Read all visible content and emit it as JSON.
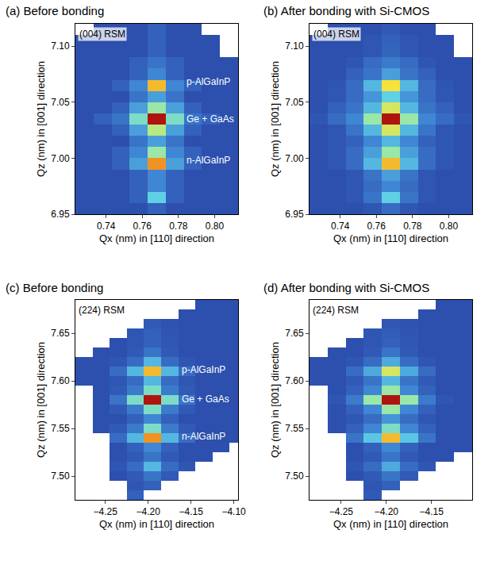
{
  "chart_data": [
    {
      "type": "heatmap",
      "title": "(a) Before bonding",
      "x_label": "Qx (nm) in [110] direction",
      "y_label": "Qz (nm) in [001] direction",
      "label": {
        "text": "(004) RSM",
        "x": 0.7245,
        "y": 7.117
      },
      "annotations": [
        {
          "text": "p-AlGaInP",
          "x": 0.7835,
          "y": 7.068
        },
        {
          "text": "Ge + GaAs",
          "x": 0.7835,
          "y": 7.035
        },
        {
          "text": "n-AlGaInP",
          "x": 0.7835,
          "y": 6.998
        }
      ],
      "xlim": [
        0.723,
        0.813
      ],
      "ylim": [
        6.95,
        7.12
      ],
      "xticks": [
        0.74,
        0.76,
        0.78,
        {
          "value": 0.8,
          "label": "0.80"
        }
      ],
      "yticks": [
        6.95,
        {
          "value": 7,
          "label": "7.00"
        },
        7.05,
        {
          "value": 7.1,
          "label": "7.10"
        }
      ],
      "zlim": [
        0,
        10
      ],
      "x": [
        0.728,
        0.738,
        0.748,
        0.758,
        0.768,
        0.778,
        0.788,
        0.798,
        0.808
      ],
      "y": [
        6.955,
        6.965,
        6.975,
        6.985,
        6.995,
        7.005,
        7.015,
        7.025,
        7.035,
        7.045,
        7.055,
        7.065,
        7.075,
        7.085,
        7.095,
        7.105,
        7.115
      ],
      "z": [
        [
          2,
          2,
          2,
          2,
          2.5,
          2,
          2,
          2,
          2
        ],
        [
          2,
          2,
          2,
          2.5,
          5,
          2.5,
          2,
          2,
          2
        ],
        [
          2,
          2,
          2,
          2.5,
          3.5,
          2.5,
          2,
          2,
          2
        ],
        [
          2,
          2,
          2,
          2.5,
          3.5,
          2.5,
          2,
          2,
          2
        ],
        [
          2,
          2,
          2.5,
          4,
          8.5,
          4,
          2.5,
          2,
          2
        ],
        [
          2,
          2,
          2.5,
          3.5,
          6,
          3.5,
          2.5,
          2,
          2
        ],
        [
          2,
          2,
          2,
          3,
          4,
          3,
          2,
          2,
          2
        ],
        [
          2,
          2,
          2.5,
          4,
          6.5,
          4,
          2.5,
          2,
          2
        ],
        [
          2,
          2.5,
          3,
          5.5,
          10,
          5.5,
          3,
          2.5,
          2
        ],
        [
          2,
          2,
          2.5,
          4,
          6,
          4,
          2.5,
          2,
          2
        ],
        [
          2,
          2,
          2,
          3,
          4,
          3,
          2,
          2,
          2
        ],
        [
          2,
          2,
          2.5,
          3.5,
          8,
          3.5,
          2.5,
          2,
          2
        ],
        [
          2,
          2,
          2,
          2.5,
          3.5,
          2.5,
          2,
          2,
          2
        ],
        [
          2,
          2,
          2,
          2.5,
          3,
          2.5,
          2,
          2,
          2
        ],
        [
          2,
          2,
          2,
          2,
          2.5,
          2,
          2,
          2,
          null
        ],
        [
          2,
          2,
          2,
          2,
          2.5,
          2,
          2,
          2,
          null
        ],
        [
          null,
          2,
          2,
          2,
          2.5,
          2,
          2,
          null,
          null
        ]
      ]
    },
    {
      "type": "heatmap",
      "title": "(b) After bonding with Si-CMOS",
      "x_label": "Qx (nm) in [110] direction",
      "y_label": "Qz (nm) in [001] direction",
      "label": {
        "text": "(004) RSM",
        "x": 0.7245,
        "y": 7.117
      },
      "annotations": [],
      "xlim": [
        0.723,
        0.813
      ],
      "ylim": [
        6.95,
        7.12
      ],
      "xticks": [
        0.74,
        0.76,
        0.78,
        {
          "value": 0.8,
          "label": "0.80"
        }
      ],
      "yticks": [
        6.95,
        {
          "value": 7,
          "label": "7.00"
        },
        7.05,
        {
          "value": 7.1,
          "label": "7.10"
        }
      ],
      "zlim": [
        0,
        10
      ],
      "x": [
        0.728,
        0.738,
        0.748,
        0.758,
        0.768,
        0.778,
        0.788,
        0.798,
        0.808
      ],
      "y": [
        6.955,
        6.965,
        6.975,
        6.985,
        6.995,
        7.005,
        7.015,
        7.025,
        7.035,
        7.045,
        7.055,
        7.065,
        7.075,
        7.085,
        7.095,
        7.105,
        7.115
      ],
      "z": [
        [
          2,
          2,
          2,
          2.2,
          2.8,
          2.2,
          2,
          2,
          2
        ],
        [
          2,
          2,
          2.2,
          3,
          5,
          3,
          2.2,
          2,
          2
        ],
        [
          2,
          2,
          2.2,
          2.8,
          3.5,
          2.8,
          2.2,
          2,
          2
        ],
        [
          2,
          2,
          2.2,
          3,
          4,
          3,
          2.2,
          2,
          2
        ],
        [
          2,
          2.2,
          2.8,
          4.5,
          8,
          4.5,
          2.8,
          2.2,
          2
        ],
        [
          2,
          2.2,
          2.8,
          4,
          6,
          4,
          2.8,
          2.2,
          2
        ],
        [
          2,
          2.2,
          2.5,
          3.5,
          4.5,
          3.5,
          2.5,
          2.2,
          2
        ],
        [
          2,
          2.2,
          3,
          4.5,
          7,
          4.5,
          3,
          2.2,
          2
        ],
        [
          2.2,
          2.8,
          3.5,
          6,
          10,
          6,
          3.5,
          2.8,
          2.2
        ],
        [
          2,
          2.5,
          3,
          4.5,
          7,
          4.5,
          3,
          2.5,
          2
        ],
        [
          2,
          2.2,
          2.8,
          3.8,
          5,
          3.8,
          2.8,
          2.2,
          2
        ],
        [
          2,
          2.2,
          2.8,
          4.5,
          7.5,
          4.5,
          2.8,
          2.2,
          2
        ],
        [
          2,
          2,
          2.5,
          3,
          4,
          3,
          2.5,
          2,
          2
        ],
        [
          2,
          2,
          2.2,
          2.8,
          3.2,
          2.8,
          2.2,
          2,
          2
        ],
        [
          2,
          2,
          2,
          2.2,
          2.6,
          2.2,
          2,
          2,
          null
        ],
        [
          2,
          2,
          2,
          2.2,
          2.5,
          2.2,
          2,
          2,
          null
        ],
        [
          null,
          2,
          2,
          2,
          2.3,
          2,
          2,
          null,
          null
        ]
      ]
    },
    {
      "type": "heatmap",
      "title": "(c) Before bonding",
      "x_label": "Qx (nm) in [110] direction",
      "y_label": "Qz (nm) in [001] direction",
      "label": {
        "text": "(224) RSM",
        "x": -4.283,
        "y": 7.682
      },
      "annotations": [
        {
          "text": "p-AlGaInP",
          "x": -4.163,
          "y": 7.612
        },
        {
          "text": "Ge + GaAs",
          "x": -4.163,
          "y": 7.581
        },
        {
          "text": "n-AlGaInP",
          "x": -4.163,
          "y": 7.542
        }
      ],
      "xlim": [
        -4.285,
        -4.095
      ],
      "ylim": [
        7.475,
        7.685
      ],
      "xticks": [
        {
          "value": -4.25,
          "label": "−4.25"
        },
        {
          "value": -4.2,
          "label": "−4.20"
        },
        {
          "value": -4.15,
          "label": "−4.15"
        },
        {
          "value": -4.1,
          "label": "−4.10"
        }
      ],
      "yticks": [
        {
          "value": 7.5,
          "label": "7.50"
        },
        7.55,
        {
          "value": 7.6,
          "label": "7.60"
        },
        7.65
      ],
      "zlim": [
        0,
        10
      ],
      "x": [
        -4.275,
        -4.255,
        -4.235,
        -4.215,
        -4.195,
        -4.175,
        -4.155,
        -4.135,
        -4.115,
        -4.095
      ],
      "y": [
        7.48,
        7.49,
        7.5,
        7.51,
        7.52,
        7.53,
        7.54,
        7.55,
        7.56,
        7.57,
        7.58,
        7.59,
        7.6,
        7.61,
        7.62,
        7.63,
        7.64,
        7.65,
        7.66,
        7.67,
        7.68
      ],
      "z": [
        [
          null,
          null,
          null,
          2.5,
          null,
          null,
          null,
          null,
          null,
          null
        ],
        [
          null,
          null,
          null,
          2.2,
          2.5,
          null,
          null,
          null,
          null,
          null
        ],
        [
          null,
          null,
          2,
          2.3,
          3,
          2.3,
          null,
          null,
          null,
          null
        ],
        [
          null,
          null,
          2.2,
          2.8,
          4.5,
          2.8,
          2.2,
          null,
          null,
          null
        ],
        [
          null,
          null,
          2,
          2.3,
          3,
          2.3,
          2,
          2,
          null,
          null
        ],
        [
          null,
          null,
          2,
          2.5,
          3.5,
          2.5,
          2,
          2,
          2,
          null
        ],
        [
          null,
          null,
          2.8,
          4.5,
          8.5,
          4.5,
          2.8,
          2,
          2,
          2
        ],
        [
          null,
          2,
          2.3,
          3.2,
          5.5,
          3.2,
          2.3,
          2,
          2,
          2
        ],
        [
          null,
          2,
          2,
          2.5,
          3.5,
          2.5,
          2,
          2,
          2,
          2
        ],
        [
          null,
          2,
          2.3,
          3.2,
          5.5,
          3.2,
          2.3,
          2,
          2,
          2
        ],
        [
          null,
          2,
          3,
          5.5,
          10,
          5.5,
          3,
          2,
          2,
          2
        ],
        [
          null,
          2,
          2.3,
          3.2,
          5.5,
          3.2,
          2.3,
          2,
          2,
          2
        ],
        [
          2,
          2,
          2.2,
          2.8,
          4.5,
          2.8,
          2.2,
          2,
          2,
          2
        ],
        [
          2,
          2,
          2.8,
          4.5,
          8,
          4.5,
          2.8,
          2,
          2,
          2
        ],
        [
          2,
          2,
          2.2,
          2.8,
          4.5,
          2.8,
          2.2,
          2,
          2,
          2
        ],
        [
          null,
          2,
          2,
          2.3,
          3,
          2.3,
          2,
          2,
          2,
          2
        ],
        [
          null,
          null,
          2,
          2.2,
          2.5,
          2.2,
          2,
          2,
          2,
          2
        ],
        [
          null,
          null,
          null,
          2.2,
          2.5,
          2.2,
          2,
          2,
          2,
          2
        ],
        [
          null,
          null,
          null,
          null,
          2.3,
          2.1,
          2,
          2,
          2,
          2
        ],
        [
          null,
          null,
          null,
          null,
          null,
          null,
          2,
          2,
          2,
          2
        ],
        [
          null,
          null,
          null,
          null,
          null,
          null,
          null,
          2,
          2,
          2
        ]
      ]
    },
    {
      "type": "heatmap",
      "title": "(d) After bonding with Si-CMOS",
      "x_label": "Qx (nm) in [110] direction",
      "y_label": "Qz (nm) in [001] direction",
      "label": {
        "text": "(224) RSM",
        "x": -4.283,
        "y": 7.682
      },
      "annotations": [],
      "xlim": [
        -4.285,
        -4.105
      ],
      "ylim": [
        7.475,
        7.685
      ],
      "xticks": [
        {
          "value": -4.25,
          "label": "−4.25"
        },
        {
          "value": -4.2,
          "label": "−4.20"
        },
        {
          "value": -4.15,
          "label": "−4.15"
        }
      ],
      "yticks": [
        {
          "value": 7.5,
          "label": "7.50"
        },
        7.55,
        {
          "value": 7.6,
          "label": "7.60"
        },
        7.65
      ],
      "zlim": [
        0,
        10
      ],
      "x": [
        -4.275,
        -4.255,
        -4.235,
        -4.215,
        -4.195,
        -4.175,
        -4.155,
        -4.135,
        -4.115
      ],
      "y": [
        7.48,
        7.49,
        7.5,
        7.51,
        7.52,
        7.53,
        7.54,
        7.55,
        7.56,
        7.57,
        7.58,
        7.59,
        7.6,
        7.61,
        7.62,
        7.63,
        7.64,
        7.65,
        7.66,
        7.67,
        7.68
      ],
      "z": [
        [
          null,
          null,
          null,
          2.3,
          null,
          null,
          null,
          null,
          null
        ],
        [
          null,
          null,
          null,
          2.2,
          2.5,
          null,
          null,
          null,
          null
        ],
        [
          null,
          null,
          2,
          2.3,
          3,
          2.3,
          null,
          null,
          null
        ],
        [
          null,
          null,
          2.2,
          2.8,
          4.2,
          2.8,
          2.2,
          null,
          null
        ],
        [
          null,
          null,
          2,
          2.3,
          3,
          2.3,
          2,
          2,
          null
        ],
        [
          null,
          null,
          2,
          2.5,
          3.5,
          2.5,
          2,
          2,
          2
        ],
        [
          null,
          null,
          3,
          4.8,
          8,
          4.8,
          3,
          2,
          2
        ],
        [
          null,
          2,
          2.5,
          3.5,
          5.5,
          3.5,
          2.5,
          2,
          2
        ],
        [
          null,
          2,
          2.2,
          2.8,
          3.8,
          2.8,
          2.2,
          2,
          2
        ],
        [
          null,
          2,
          2.5,
          3.5,
          6,
          3.5,
          2.5,
          2,
          2
        ],
        [
          null,
          2.2,
          3.2,
          6,
          10,
          6,
          3.2,
          2.2,
          2
        ],
        [
          null,
          2,
          2.5,
          3.5,
          6,
          3.5,
          2.5,
          2,
          2
        ],
        [
          2,
          2,
          2.3,
          3,
          4.5,
          3,
          2.3,
          2,
          2
        ],
        [
          2,
          2,
          2.8,
          4.2,
          7,
          4.2,
          2.8,
          2,
          2
        ],
        [
          2,
          2,
          2.2,
          2.8,
          4.2,
          2.8,
          2.2,
          2,
          2
        ],
        [
          null,
          2,
          2,
          2.3,
          3,
          2.3,
          2,
          2,
          2
        ],
        [
          null,
          null,
          2,
          2.2,
          2.5,
          2.2,
          2,
          2,
          2
        ],
        [
          null,
          null,
          null,
          2.2,
          2.4,
          2.2,
          2,
          2,
          2
        ],
        [
          null,
          null,
          null,
          null,
          2.2,
          2.1,
          2,
          2,
          2
        ],
        [
          null,
          null,
          null,
          null,
          null,
          null,
          2,
          2,
          2
        ],
        [
          null,
          null,
          null,
          null,
          null,
          null,
          null,
          2,
          2
        ]
      ]
    }
  ]
}
